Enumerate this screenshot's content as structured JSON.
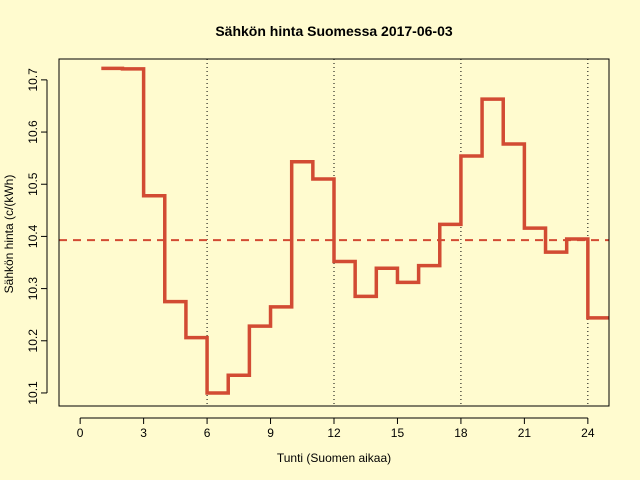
{
  "chart_data": {
    "type": "line",
    "style": "step",
    "title": "Sähkön hinta Suomessa 2017-06-03",
    "xlabel": "Tunti (Suomen aikaa)",
    "ylabel": "Sähkön hinta (c/(kWh)",
    "xlim": [
      -1,
      25
    ],
    "ylim": [
      10.075,
      10.74
    ],
    "xticks": [
      0,
      3,
      6,
      9,
      12,
      15,
      18,
      21,
      24
    ],
    "yticks": [
      10.1,
      10.2,
      10.3,
      10.4,
      10.5,
      10.6,
      10.7
    ],
    "vlines": [
      6,
      12,
      18,
      24
    ],
    "mean_line": 10.393,
    "grid": false,
    "colors": {
      "line": "#D24B33",
      "mean": "#D24B33",
      "background": "#FFFBCF"
    },
    "series": [
      {
        "x": [
          1,
          2,
          3,
          4,
          5,
          6,
          7,
          8,
          9,
          10,
          11,
          12,
          13,
          14,
          15,
          16,
          17,
          18,
          19,
          20,
          21,
          22,
          23,
          24,
          25
        ],
        "values": [
          10.722,
          10.721,
          10.478,
          10.275,
          10.206,
          10.1,
          10.134,
          10.228,
          10.265,
          10.543,
          10.51,
          10.352,
          10.285,
          10.339,
          10.312,
          10.344,
          10.423,
          10.554,
          10.663,
          10.577,
          10.416,
          10.37,
          10.395,
          10.244,
          10.244
        ]
      }
    ]
  }
}
